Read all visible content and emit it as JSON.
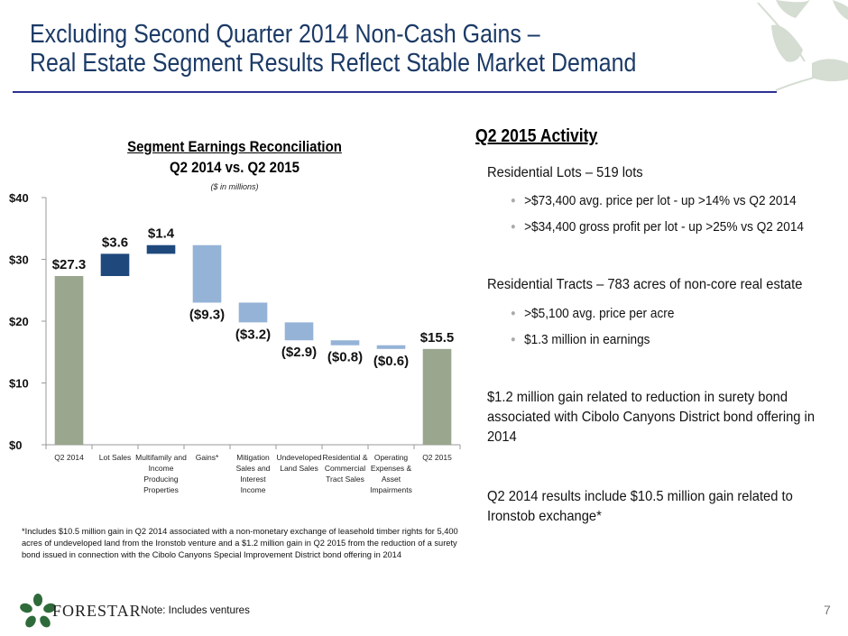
{
  "header": {
    "title_line1": "Excluding Second Quarter 2014 Non-Cash Gains –",
    "title_line2": "Real Estate Segment Results Reflect Stable Market Demand"
  },
  "chart_data": {
    "type": "bar",
    "subtype": "waterfall",
    "title": "Segment Earnings Reconciliation",
    "subtitle": "Q2 2014 vs. Q2 2015",
    "units_note": "($ in millions)",
    "xlabel": "",
    "ylabel": "",
    "ylim": [
      0,
      40
    ],
    "yticks": [
      0,
      10,
      20,
      30,
      40
    ],
    "ytick_labels": [
      "$0",
      "$10",
      "$20",
      "$30",
      "$40"
    ],
    "grid": false,
    "legend": null,
    "categories": [
      "Q2 2014",
      "Lot Sales",
      "Multifamily and Income Producing Properties",
      "Gains*",
      "Mitigation Sales and Interest Income",
      "Undeveloped Land Sales",
      "Residential & Commercial Tract Sales",
      "Operating Expenses & Asset Impairments",
      "Q2 2015"
    ],
    "category_label_lines": [
      [
        "Q2 2014"
      ],
      [
        "Lot Sales"
      ],
      [
        "Multifamily and",
        "Income",
        "Producing",
        "Properties"
      ],
      [
        "Gains*"
      ],
      [
        "Mitigation",
        "Sales and",
        "Interest",
        "Income"
      ],
      [
        "Undeveloped",
        "Land Sales"
      ],
      [
        "Residential &",
        "Commercial",
        "Tract Sales"
      ],
      [
        "Operating",
        "Expenses &",
        "Asset",
        "Impairments"
      ],
      [
        "Q2 2015"
      ]
    ],
    "values": [
      27.3,
      3.6,
      1.4,
      -9.3,
      -3.2,
      -2.9,
      -0.8,
      -0.6,
      15.5
    ],
    "bar_kinds": [
      "total",
      "increase",
      "increase",
      "decrease",
      "decrease",
      "decrease",
      "decrease",
      "decrease",
      "total"
    ],
    "data_labels": [
      "$27.3",
      "$3.6",
      "$1.4",
      "($9.3)",
      "($3.2)",
      "($2.9)",
      "($0.8)",
      "($0.6)",
      "$15.5"
    ],
    "colors": {
      "total": "#9aa68e",
      "increase": "#1f497d",
      "decrease": "#95b3d7"
    }
  },
  "footnote": "*Includes $10.5 million gain in Q2 2014 associated with a non-monetary exchange of leasehold timber rights for 5,400 acres of undeveloped land from the Ironstob venture and a $1.2 million gain in Q2 2015 from the reduction of a surety bond issued in connection with the Cibolo Canyons Special Improvement District bond offering in 2014",
  "activity": {
    "heading": "Q2 2015 Activity",
    "residential_lots": "Residential Lots – 519 lots",
    "lots_bullets": [
      ">$73,400 avg. price per lot - up >14% vs Q2 2014",
      ">$34,400 gross profit per lot - up >25% vs Q2 2014"
    ],
    "residential_tracts": "Residential Tracts – 783 acres of non-core real estate",
    "tracts_bullets": [
      ">$5,100 avg. price per acre",
      "$1.3 million in earnings"
    ],
    "surety_note": "$1.2 million gain related to reduction in surety bond associated with Cibolo Canyons District bond offering in 2014",
    "ironstob_note": "Q2 2014 results include $10.5 million gain related to Ironstob exchange*"
  },
  "footer": {
    "logo_text": "FORESTAR",
    "note": "Note: Includes ventures",
    "page_number": "7"
  }
}
